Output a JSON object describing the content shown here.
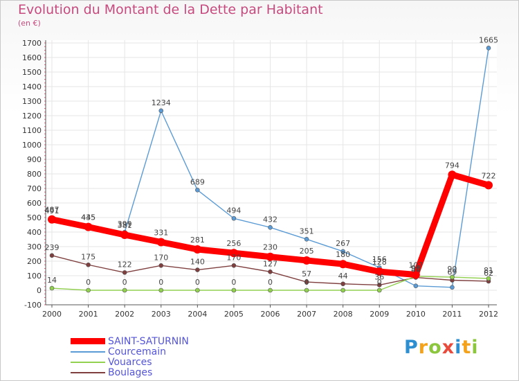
{
  "header": {
    "title": "Evolution du Montant de la Dette par Habitant",
    "subtitle": "(en €)"
  },
  "brand": {
    "text": "Proxiti",
    "colors": [
      "#2d8fd0",
      "#f5a21b",
      "#8cc63f",
      "#e84b3c",
      "#2d8fd0",
      "#f5a21b",
      "#8cc63f"
    ]
  },
  "chart_data": {
    "type": "line",
    "title": "Evolution du Montant de la Dette par Habitant",
    "subtitle": "(en €)",
    "x": [
      "2000",
      "2001",
      "2002",
      "2003",
      "2004",
      "2005",
      "2006",
      "2007",
      "2008",
      "2009",
      "2010",
      "2011",
      "2012"
    ],
    "ylim": [
      -100,
      1700
    ],
    "yticks": [
      "-100",
      "0",
      "100",
      "200",
      "300",
      "400",
      "500",
      "600",
      "700",
      "800",
      "900",
      "1000",
      "1100",
      "1200",
      "1300",
      "1400",
      "1500",
      "1600",
      "1700"
    ],
    "grid": true,
    "legend_position": "bottom-left",
    "series": [
      {
        "name": "SAINT-SATURNIN",
        "color": "#ff0000",
        "values": [
          487,
          435,
          381,
          331,
          281,
          256,
          230,
          205,
          180,
          128,
          107,
          794,
          722
        ],
        "labels": [
          "487",
          "435",
          "381",
          "331",
          "281",
          "256",
          "230",
          "205",
          "180",
          "128",
          "107",
          "794",
          "722"
        ]
      },
      {
        "name": "Courcemain",
        "color": "#5b9bd5",
        "values": [
          491,
          445,
          399,
          1234,
          689,
          494,
          432,
          351,
          267,
          156,
          30,
          20,
          1665
        ],
        "labels": [
          "491",
          "445",
          "399",
          "1234",
          "689",
          "494",
          "432",
          "351",
          "267",
          "156",
          "",
          "",
          "1665"
        ]
      },
      {
        "name": "Vouarces",
        "color": "#92d050",
        "values": [
          14,
          0,
          0,
          0,
          0,
          0,
          0,
          0,
          0,
          0,
          96,
          90,
          81
        ],
        "labels": [
          "14",
          "0",
          "0",
          "0",
          "0",
          "0",
          "0",
          "0",
          "",
          "0",
          "96",
          "90",
          "81"
        ]
      },
      {
        "name": "Boulages",
        "color": "#7f3f3f",
        "values": [
          239,
          175,
          122,
          170,
          140,
          170,
          127,
          57,
          44,
          36,
          88,
          69,
          62
        ],
        "labels": [
          "239",
          "175",
          "122",
          "170",
          "140",
          "170",
          "127",
          "57",
          "44",
          "36",
          "88",
          "69",
          "62"
        ]
      }
    ]
  }
}
